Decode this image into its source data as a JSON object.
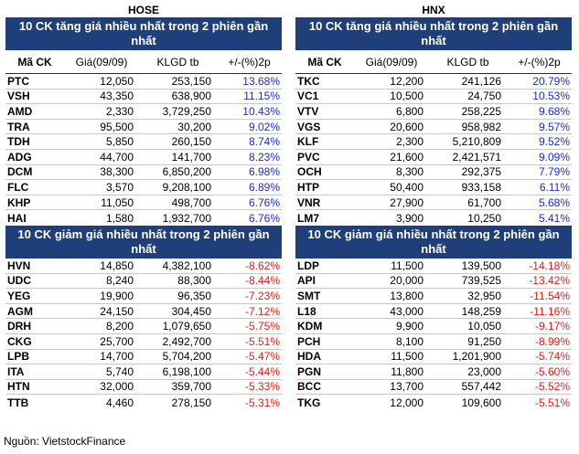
{
  "hose": {
    "exchange": "HOSE",
    "gain_title": "10 CK tăng giá nhiều nhất trong 2 phiên gần nhất",
    "loss_title": "10 CK giảm giá nhiều nhất trong 2 phiên gần nhất",
    "headers": [
      "Mã CK",
      "Giá(09/09)",
      "KLGD tb",
      "+/-(%)2p"
    ],
    "gainers": [
      [
        "PTC",
        "12,050",
        "253,150",
        "13.68%"
      ],
      [
        "VSH",
        "43,350",
        "638,900",
        "11.15%"
      ],
      [
        "AMD",
        "2,330",
        "3,729,250",
        "10.43%"
      ],
      [
        "TRA",
        "95,500",
        "30,200",
        "9.02%"
      ],
      [
        "TDH",
        "5,850",
        "260,150",
        "8.74%"
      ],
      [
        "ADG",
        "44,700",
        "141,700",
        "8.23%"
      ],
      [
        "DCM",
        "38,300",
        "6,850,200",
        "6.98%"
      ],
      [
        "FLC",
        "3,570",
        "9,208,100",
        "6.89%"
      ],
      [
        "KHP",
        "11,050",
        "498,700",
        "6.76%"
      ],
      [
        "HAI",
        "1,580",
        "1,932,700",
        "6.76%"
      ]
    ],
    "losers": [
      [
        "HVN",
        "14,850",
        "4,382,100",
        "-8.62%"
      ],
      [
        "UDC",
        "8,240",
        "88,300",
        "-8.44%"
      ],
      [
        "YEG",
        "19,900",
        "96,350",
        "-7.23%"
      ],
      [
        "AGM",
        "24,150",
        "304,450",
        "-7.12%"
      ],
      [
        "DRH",
        "8,200",
        "1,079,650",
        "-5.75%"
      ],
      [
        "CKG",
        "25,700",
        "2,492,700",
        "-5.51%"
      ],
      [
        "LPB",
        "14,700",
        "5,704,200",
        "-5.47%"
      ],
      [
        "ITA",
        "5,740",
        "6,198,100",
        "-5.44%"
      ],
      [
        "HTN",
        "32,000",
        "359,700",
        "-5.33%"
      ],
      [
        "TTB",
        "4,460",
        "278,150",
        "-5.31%"
      ]
    ]
  },
  "hnx": {
    "exchange": "HNX",
    "gain_title": "10 CK tăng giá nhiều nhất trong 2 phiên gần nhất",
    "loss_title": "10 CK giảm giá nhiều nhất trong 2 phiên gần nhất",
    "headers": [
      "Mã CK",
      "Giá(09/09)",
      "KLGD tb",
      "+/-(%)2p"
    ],
    "gainers": [
      [
        "TKC",
        "12,200",
        "241,126",
        "20.79%"
      ],
      [
        "VC1",
        "10,500",
        "24,750",
        "10.53%"
      ],
      [
        "VTV",
        "6,800",
        "258,225",
        "9.68%"
      ],
      [
        "VGS",
        "20,600",
        "958,982",
        "9.57%"
      ],
      [
        "KLF",
        "2,300",
        "5,210,809",
        "9.52%"
      ],
      [
        "PVC",
        "21,600",
        "2,421,571",
        "9.09%"
      ],
      [
        "OCH",
        "8,300",
        "292,375",
        "7.79%"
      ],
      [
        "HTP",
        "50,400",
        "933,158",
        "6.11%"
      ],
      [
        "VNR",
        "27,900",
        "61,700",
        "5.68%"
      ],
      [
        "LM7",
        "3,900",
        "10,250",
        "5.41%"
      ]
    ],
    "losers": [
      [
        "LDP",
        "11,500",
        "139,500",
        "-14.18%"
      ],
      [
        "API",
        "20,000",
        "739,525",
        "-13.42%"
      ],
      [
        "SMT",
        "13,800",
        "32,950",
        "-11.54%"
      ],
      [
        "L18",
        "43,000",
        "148,259",
        "-11.16%"
      ],
      [
        "KDM",
        "9,900",
        "10,050",
        "-9.17%"
      ],
      [
        "PCH",
        "8,100",
        "91,250",
        "-8.99%"
      ],
      [
        "HDA",
        "11,500",
        "1,201,900",
        "-5.74%"
      ],
      [
        "PGN",
        "11,800",
        "23,000",
        "-5.60%"
      ],
      [
        "BCC",
        "13,700",
        "557,442",
        "-5.52%"
      ],
      [
        "TKG",
        "12,000",
        "109,600",
        "-5.51%"
      ]
    ]
  },
  "source": "Nguồn: VietstockFinance",
  "colors": {
    "header_bg": "#1f3f7a",
    "gain": "#1a2bd6",
    "loss": "#e0201c"
  }
}
